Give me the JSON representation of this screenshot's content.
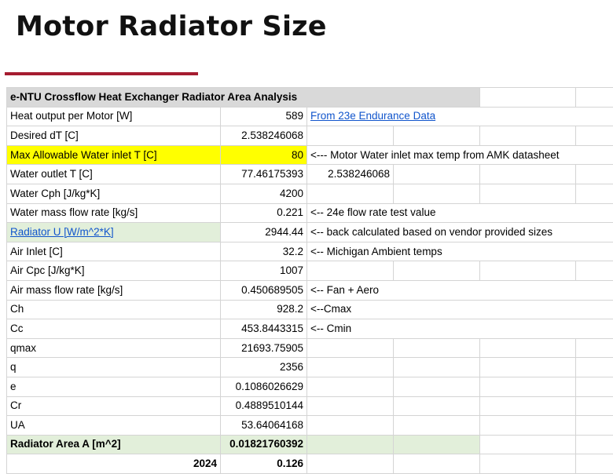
{
  "slide": {
    "title": "Motor Radiator Size",
    "accent_color": "#a51c30"
  },
  "sheet": {
    "header": "e-NTU Crossflow Heat Exchanger Radiator Area Analysis",
    "rows": [
      {
        "label": "Heat output per Motor [W]",
        "value": "589",
        "note": "From 23e Endurance Data",
        "note_is_link": true
      },
      {
        "label": "Desired dT [C]",
        "value": "2.538246068",
        "note": ""
      },
      {
        "label": "Max Allowable Water inlet T [C]",
        "value": "80",
        "note": "<--- Motor Water inlet max temp from AMK datasheet",
        "highlight": "yellow"
      },
      {
        "label": "Water outlet T [C]",
        "value": "77.46175393",
        "note": "2.538246068"
      },
      {
        "label": "Water Cph [J/kg*K]",
        "value": "4200",
        "note": ""
      },
      {
        "label": "Water mass flow rate [kg/s]",
        "value": "0.221",
        "note": "<-- 24e flow rate test value"
      },
      {
        "label": "Radiator U [W/m^2*K]",
        "value": "2944.44",
        "note": "<-- back calculated based on vendor provided sizes",
        "label_is_link": true,
        "label_highlight": "green"
      },
      {
        "label": "Air Inlet [C]",
        "value": "32.2",
        "note": "<-- Michigan Ambient temps"
      },
      {
        "label": "Air Cpc [J/kg*K]",
        "value": "1007",
        "note": ""
      },
      {
        "label": "Air mass flow rate [kg/s]",
        "value": "0.450689505",
        "note": "<-- Fan + Aero"
      },
      {
        "label": "Ch",
        "value": "928.2",
        "note": "<--Cmax"
      },
      {
        "label": "Cc",
        "value": "453.8443315",
        "note": "<-- Cmin"
      },
      {
        "label": "qmax",
        "value": "21693.75905",
        "note": ""
      },
      {
        "label": "q",
        "value": "2356",
        "note": ""
      },
      {
        "label": "e",
        "value": "0.1086026629",
        "note": ""
      },
      {
        "label": "Cr",
        "value": "0.4889510144",
        "note": ""
      },
      {
        "label": "UA",
        "value": "53.64064168",
        "note": ""
      },
      {
        "label": "Radiator Area A [m^2]",
        "value": "0.01821760392",
        "note": "",
        "highlight": "green",
        "bold": true
      }
    ],
    "footer": {
      "year": "2024",
      "value": "0.126"
    }
  }
}
